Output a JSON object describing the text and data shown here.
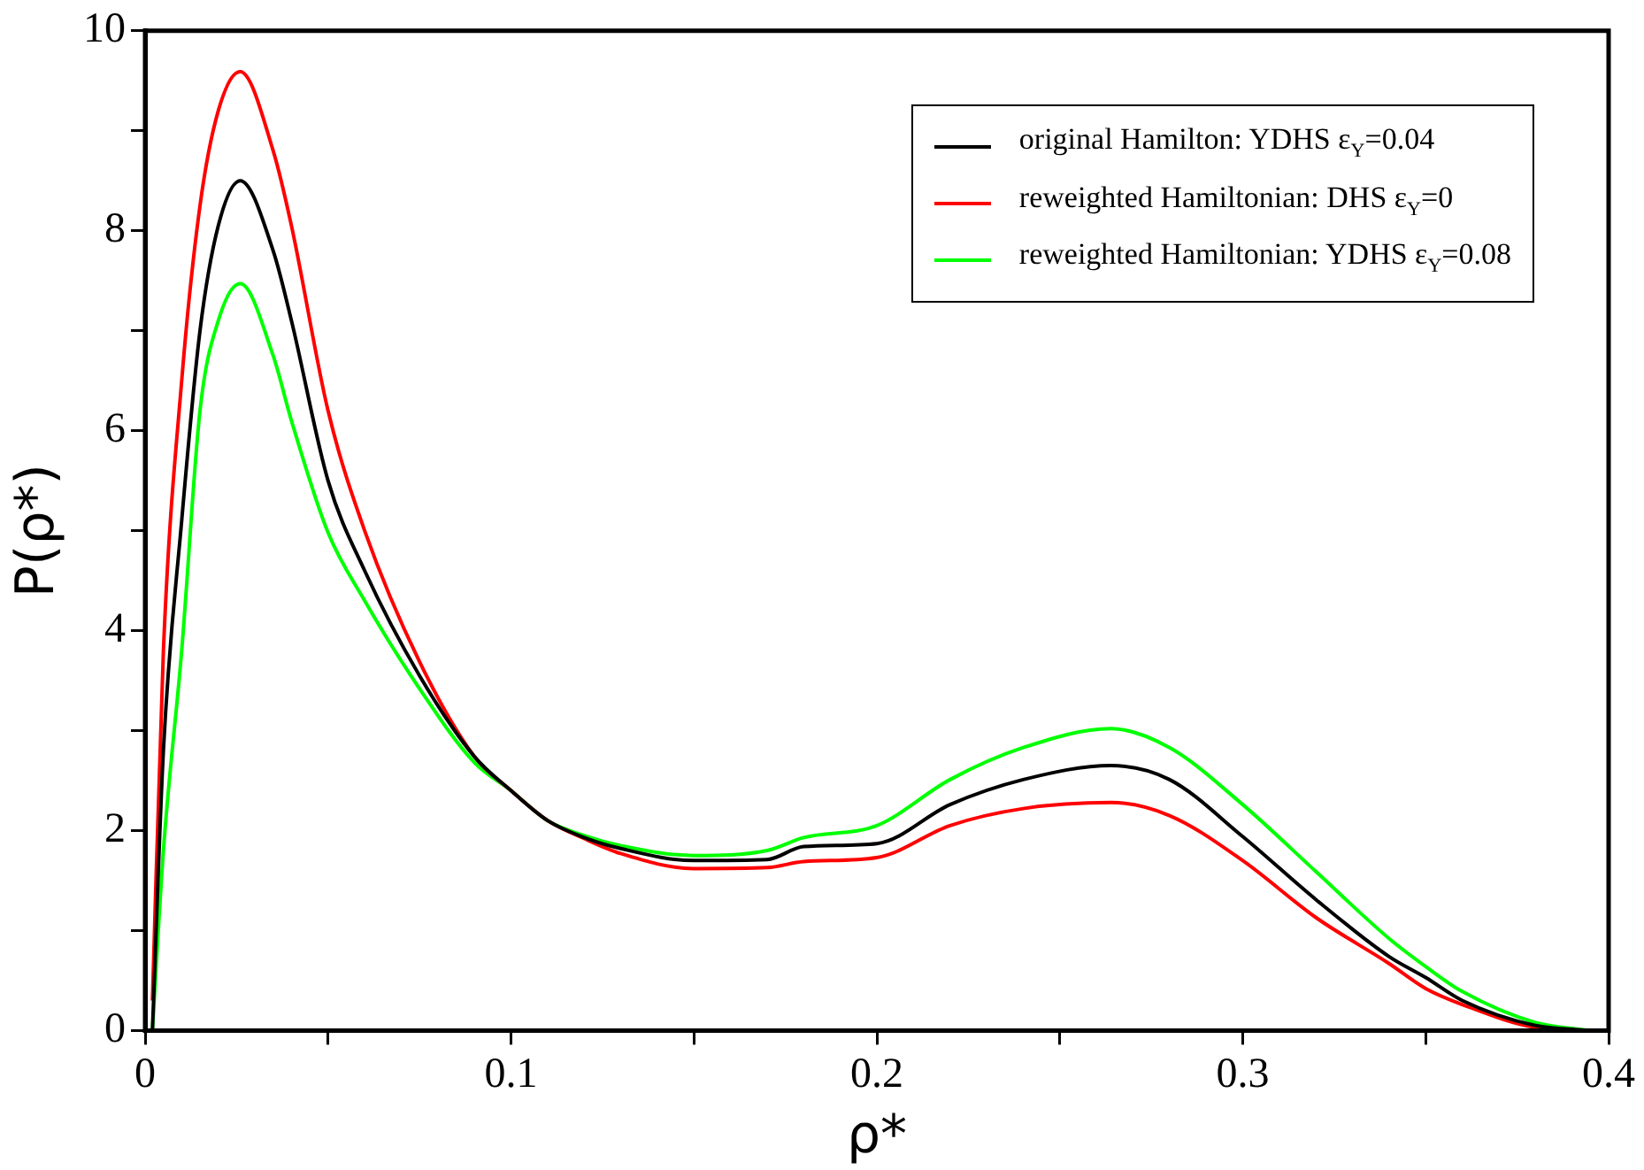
{
  "chart_data": {
    "type": "line",
    "xlabel": "ρ*",
    "ylabel": "P(ρ*)",
    "xlim": [
      0,
      0.4
    ],
    "xticks": [
      0,
      {
        "value": 0.05,
        "label": null
      },
      0.1,
      {
        "value": 0.15,
        "label": null
      },
      0.2,
      {
        "value": 0.25,
        "label": null
      },
      0.3,
      {
        "value": 0.35,
        "label": null
      },
      0.4
    ],
    "ylim": [
      0,
      10
    ],
    "yticks": [
      0,
      {
        "value": 1,
        "label": null
      },
      2,
      {
        "value": 3,
        "label": null
      },
      4,
      {
        "value": 5,
        "label": null
      },
      6,
      {
        "value": 7,
        "label": null
      },
      8,
      {
        "value": 9,
        "label": null
      },
      10
    ],
    "grid": false,
    "legend": "top right",
    "marker": "none",
    "line_style": "solid",
    "x": [
      0.002,
      0.005,
      0.01,
      0.015,
      0.02,
      0.026,
      0.035,
      0.04,
      0.05,
      0.06,
      0.075,
      0.09,
      0.1,
      0.11,
      0.12,
      0.13,
      0.15,
      0.17,
      0.18,
      0.2,
      0.22,
      0.24,
      0.264,
      0.28,
      0.3,
      0.32,
      0.34,
      0.35,
      0.36,
      0.38,
      0.395
    ],
    "series": [
      {
        "name": "original Hamilton: YDHS ε$_{Y}$=0.04",
        "color": "#000000",
        "values": [
          0,
          2.8,
          5.1,
          7.0,
          8.05,
          8.5,
          7.8,
          7.1,
          5.5,
          4.6,
          3.55,
          2.74,
          2.4,
          2.1,
          1.93,
          1.82,
          1.7,
          1.71,
          1.84,
          1.87,
          2.26,
          2.51,
          2.65,
          2.51,
          1.94,
          1.31,
          0.74,
          0.53,
          0.3,
          0.05,
          0
        ]
      },
      {
        "name": "reweighted Hamiltonian: DHS ε$_{Y}$=0",
        "color": "#ff0000",
        "values": [
          0.3,
          3.8,
          6.5,
          8.25,
          9.2,
          9.59,
          8.8,
          8.05,
          6.2,
          5.0,
          3.69,
          2.74,
          2.4,
          2.1,
          1.92,
          1.77,
          1.62,
          1.63,
          1.69,
          1.73,
          2.05,
          2.22,
          2.28,
          2.15,
          1.7,
          1.13,
          0.67,
          0.42,
          0.26,
          0.03,
          0
        ]
      },
      {
        "name": "reweighted Hamiltonian: YDHS ε$_{Y}$=0.08",
        "color": "#00ff00",
        "values": [
          0,
          1.8,
          3.8,
          6.2,
          7.1,
          7.47,
          6.75,
          6.1,
          4.98,
          4.3,
          3.42,
          2.68,
          2.4,
          2.1,
          1.95,
          1.85,
          1.75,
          1.8,
          1.93,
          2.05,
          2.51,
          2.83,
          3.02,
          2.83,
          2.26,
          1.59,
          0.92,
          0.64,
          0.39,
          0.08,
          0
        ]
      }
    ]
  }
}
